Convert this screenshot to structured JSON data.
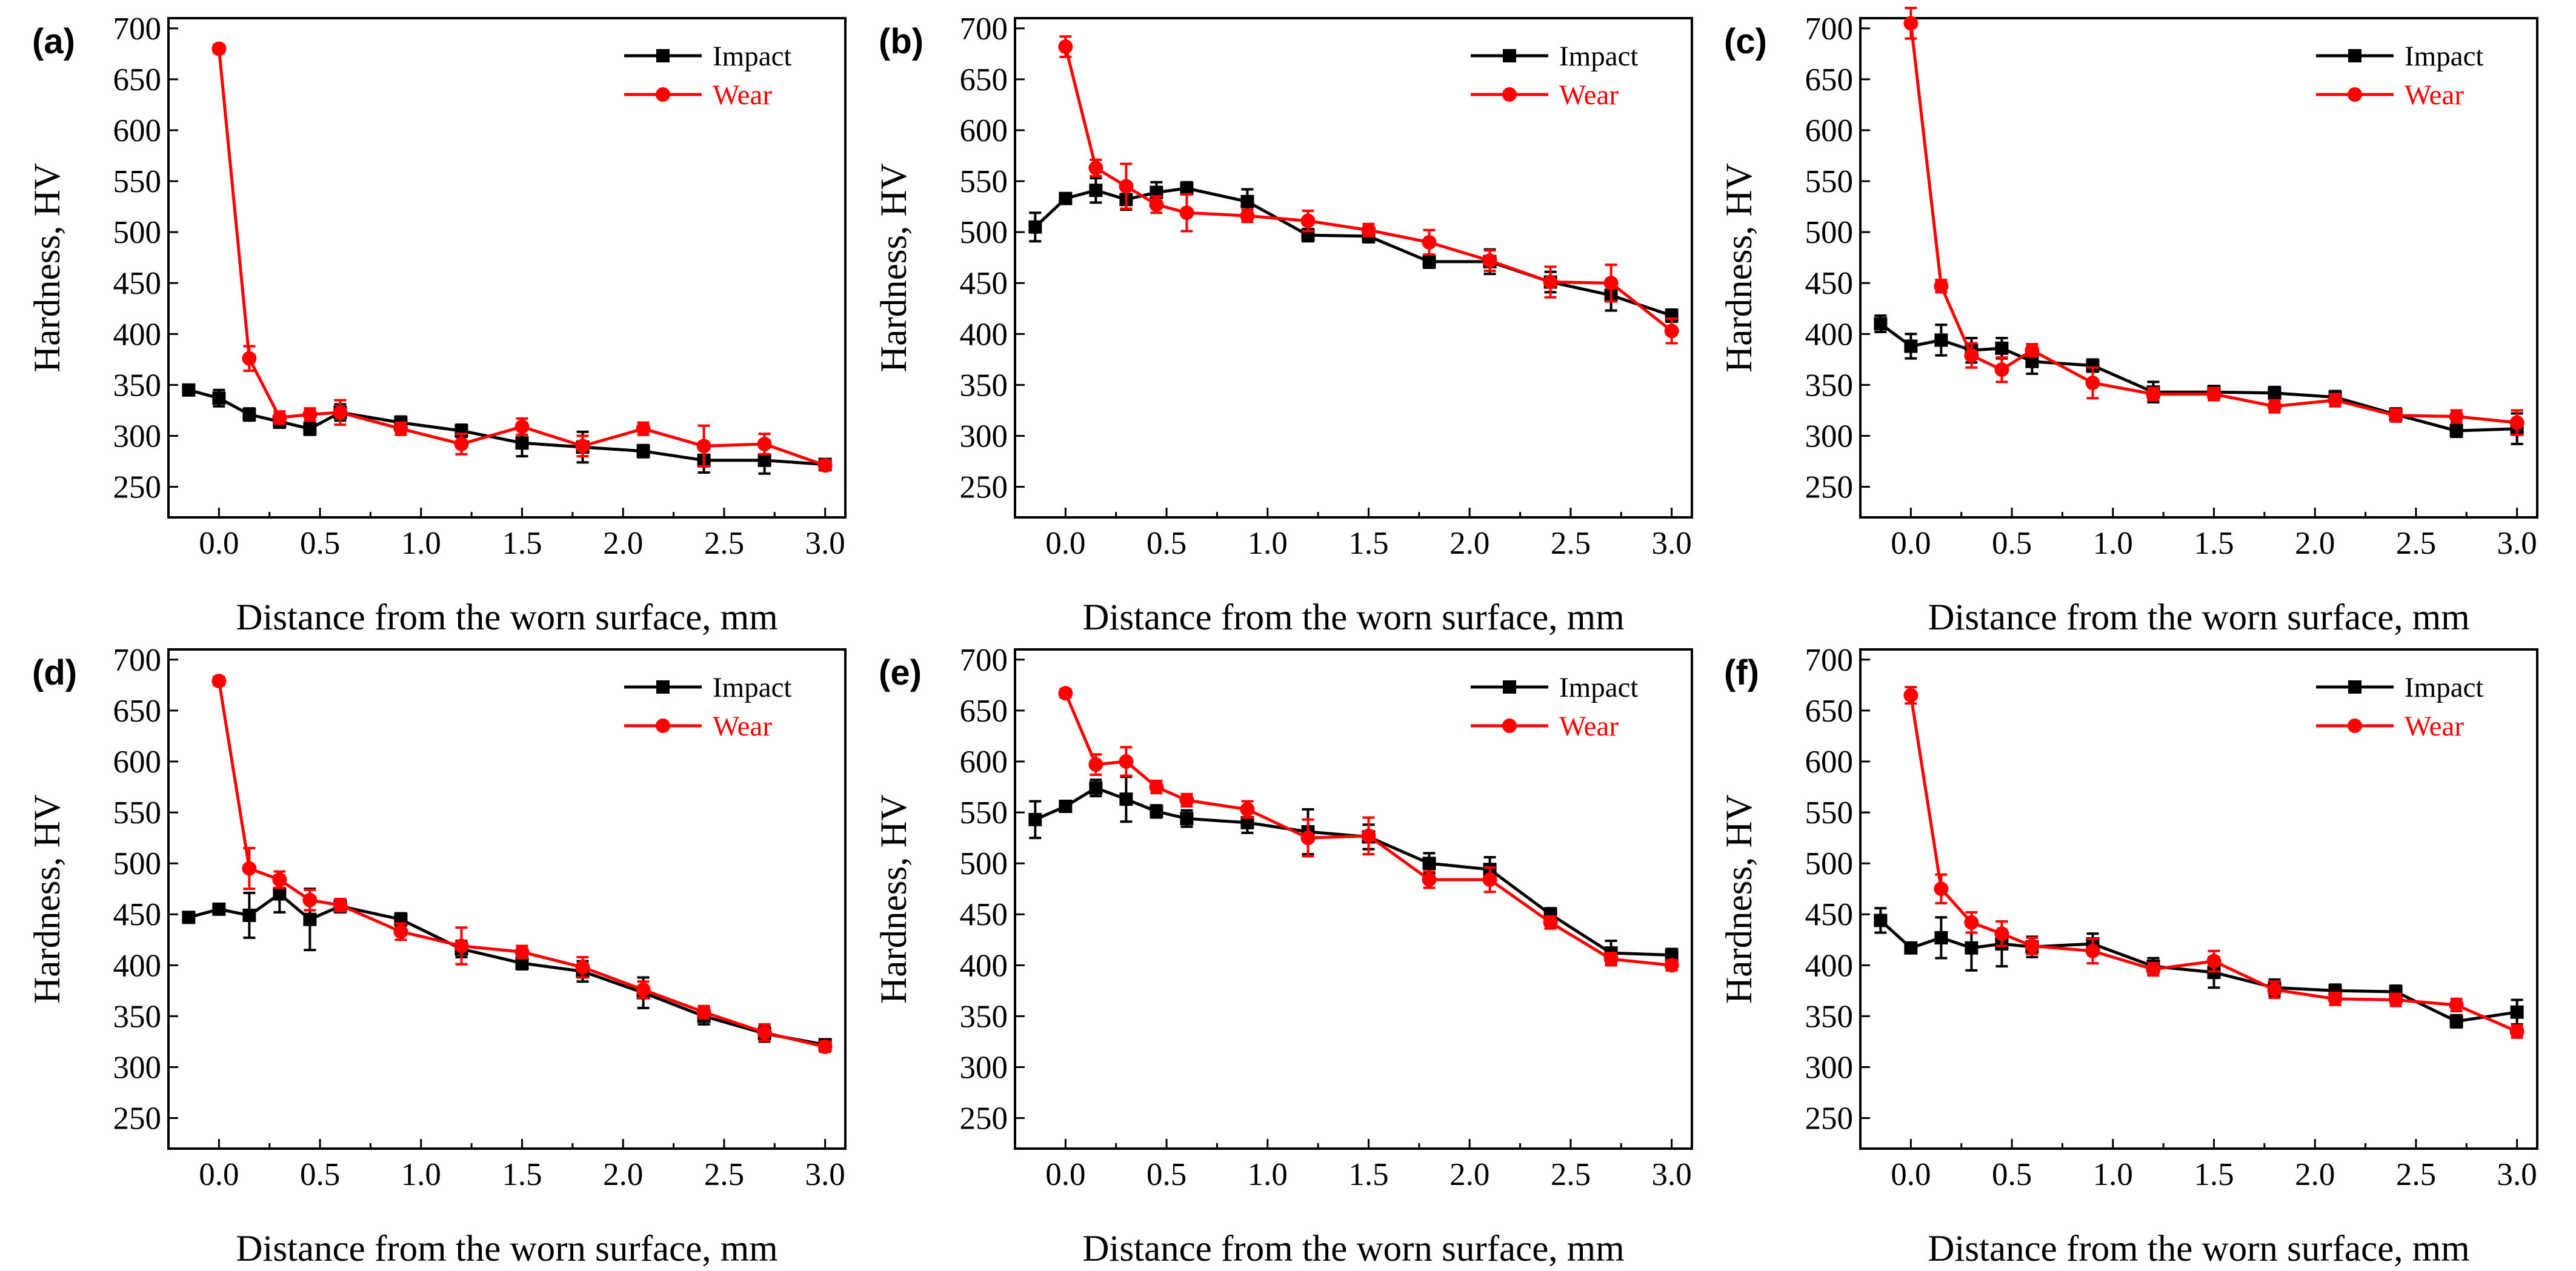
{
  "colors": {
    "impact": "#000000",
    "wear": "#ff0000",
    "axis": "#000000"
  },
  "chart_data": [
    {
      "type": "line",
      "panel_label": "(a)",
      "xlabel": "Distance from the worn surface, mm",
      "ylabel": "Hardness, HV",
      "xlim": [
        -0.25,
        3.1
      ],
      "ylim": [
        220,
        710
      ],
      "xticks": [
        "0.0",
        "0.5",
        "1.0",
        "1.5",
        "2.0",
        "2.5",
        "3.0"
      ],
      "yticks": [
        "250",
        "300",
        "350",
        "400",
        "450",
        "500",
        "550",
        "600",
        "650",
        "700"
      ],
      "legend": {
        "position": "top-right"
      },
      "series": [
        {
          "name": "Impact",
          "marker": "square",
          "x": [
            -0.15,
            0,
            0.15,
            0.3,
            0.45,
            0.6,
            0.9,
            1.2,
            1.5,
            1.8,
            2.1,
            2.4,
            2.7,
            3.0
          ],
          "y": [
            345,
            337,
            321,
            314,
            307,
            323,
            313,
            305,
            293,
            289,
            285,
            276,
            276,
            272
          ],
          "err": [
            5,
            8,
            6,
            6,
            6,
            8,
            6,
            6,
            13,
            15,
            6,
            12,
            13,
            5
          ]
        },
        {
          "name": "Wear",
          "marker": "circle",
          "x": [
            0,
            0.15,
            0.3,
            0.45,
            0.6,
            0.9,
            1.2,
            1.5,
            1.8,
            2.1,
            2.4,
            2.7,
            3.0
          ],
          "y": [
            680,
            376,
            318,
            321,
            323,
            307,
            292,
            309,
            290,
            307,
            290,
            292,
            271
          ],
          "err": [
            4,
            12,
            6,
            6,
            12,
            6,
            10,
            8,
            10,
            6,
            20,
            10,
            5
          ]
        }
      ]
    },
    {
      "type": "line",
      "panel_label": "(b)",
      "xlabel": "Distance from the worn surface, mm",
      "ylabel": "Hardness, HV",
      "xlim": [
        -0.25,
        3.1
      ],
      "ylim": [
        220,
        710
      ],
      "xticks": [
        "0.0",
        "0.5",
        "1.0",
        "1.5",
        "2.0",
        "2.5",
        "3.0"
      ],
      "yticks": [
        "250",
        "300",
        "350",
        "400",
        "450",
        "500",
        "550",
        "600",
        "650",
        "700"
      ],
      "legend": {
        "position": "top-right"
      },
      "series": [
        {
          "name": "Impact",
          "marker": "square",
          "x": [
            -0.15,
            0,
            0.15,
            0.3,
            0.45,
            0.6,
            0.9,
            1.2,
            1.5,
            1.8,
            2.1,
            2.4,
            2.7,
            3.0
          ],
          "y": [
            505,
            533,
            541,
            532,
            539,
            543,
            530,
            497,
            496,
            471,
            471,
            451,
            438,
            418
          ],
          "err": [
            14,
            5,
            12,
            10,
            10,
            6,
            12,
            6,
            6,
            6,
            12,
            10,
            15,
            6
          ]
        },
        {
          "name": "Wear",
          "marker": "circle",
          "x": [
            0,
            0.15,
            0.3,
            0.45,
            0.6,
            0.9,
            1.2,
            1.5,
            1.8,
            2.1,
            2.4,
            2.7,
            3.0
          ],
          "y": [
            682,
            563,
            545,
            527,
            519,
            516,
            511,
            502,
            490,
            472,
            451,
            450,
            403
          ],
          "err": [
            10,
            8,
            22,
            8,
            18,
            6,
            10,
            6,
            12,
            10,
            15,
            18,
            12
          ]
        }
      ]
    },
    {
      "type": "line",
      "panel_label": "(c)",
      "xlabel": "Distance from the worn surface, mm",
      "ylabel": "Hardness, HV",
      "xlim": [
        -0.25,
        3.1
      ],
      "ylim": [
        220,
        710
      ],
      "xticks": [
        "0.0",
        "0.5",
        "1.0",
        "1.5",
        "2.0",
        "2.5",
        "3.0"
      ],
      "yticks": [
        "250",
        "300",
        "350",
        "400",
        "450",
        "500",
        "550",
        "600",
        "650",
        "700"
      ],
      "legend": {
        "position": "top-right"
      },
      "series": [
        {
          "name": "Impact",
          "marker": "square",
          "x": [
            -0.15,
            0,
            0.15,
            0.3,
            0.45,
            0.6,
            0.9,
            1.2,
            1.5,
            1.8,
            2.1,
            2.4,
            2.7,
            3.0
          ],
          "y": [
            410,
            388,
            394,
            384,
            386,
            373,
            369,
            343,
            343,
            342,
            338,
            321,
            305,
            307
          ],
          "err": [
            8,
            12,
            15,
            12,
            10,
            12,
            6,
            10,
            6,
            6,
            6,
            6,
            6,
            15
          ]
        },
        {
          "name": "Wear",
          "marker": "circle",
          "x": [
            0,
            0.15,
            0.3,
            0.45,
            0.6,
            0.9,
            1.2,
            1.5,
            1.8,
            2.1,
            2.4,
            2.7,
            3.0
          ],
          "y": [
            705,
            447,
            379,
            365,
            384,
            352,
            341,
            341,
            329,
            335,
            320,
            319,
            313
          ],
          "err": [
            15,
            6,
            12,
            12,
            6,
            15,
            6,
            6,
            6,
            6,
            6,
            6,
            12
          ]
        }
      ]
    },
    {
      "type": "line",
      "panel_label": "(d)",
      "xlabel": "Distance from the worn surface, mm",
      "ylabel": "Hardness, HV",
      "xlim": [
        -0.25,
        3.1
      ],
      "ylim": [
        220,
        710
      ],
      "xticks": [
        "0.0",
        "0.5",
        "1.0",
        "1.5",
        "2.0",
        "2.5",
        "3.0"
      ],
      "yticks": [
        "250",
        "300",
        "350",
        "400",
        "450",
        "500",
        "550",
        "600",
        "650",
        "700"
      ],
      "legend": {
        "position": "top-right"
      },
      "series": [
        {
          "name": "Impact",
          "marker": "square",
          "x": [
            -0.15,
            0,
            0.15,
            0.3,
            0.45,
            0.6,
            0.9,
            1.2,
            1.5,
            1.8,
            2.1,
            2.4,
            2.7,
            3.0
          ],
          "y": [
            447,
            455,
            449,
            470,
            445,
            458,
            445,
            416,
            402,
            394,
            373,
            350,
            333,
            322
          ],
          "err": [
            5,
            5,
            22,
            18,
            30,
            6,
            6,
            8,
            6,
            10,
            15,
            8,
            8,
            5
          ]
        },
        {
          "name": "Wear",
          "marker": "circle",
          "x": [
            0,
            0.15,
            0.3,
            0.45,
            0.6,
            0.9,
            1.2,
            1.5,
            1.8,
            2.1,
            2.4,
            2.7,
            3.0
          ],
          "y": [
            679,
            495,
            484,
            464,
            459,
            433,
            419,
            413,
            398,
            376,
            354,
            334,
            320
          ],
          "err": [
            4,
            20,
            8,
            10,
            6,
            8,
            18,
            6,
            10,
            8,
            6,
            8,
            5
          ]
        }
      ]
    },
    {
      "type": "line",
      "panel_label": "(e)",
      "xlabel": "Distance from the worn surface, mm",
      "ylabel": "Hardness, HV",
      "xlim": [
        -0.25,
        3.1
      ],
      "ylim": [
        220,
        710
      ],
      "xticks": [
        "0.0",
        "0.5",
        "1.0",
        "1.5",
        "2.0",
        "2.5",
        "3.0"
      ],
      "yticks": [
        "250",
        "300",
        "350",
        "400",
        "450",
        "500",
        "550",
        "600",
        "650",
        "700"
      ],
      "legend": {
        "position": "top-right"
      },
      "series": [
        {
          "name": "Impact",
          "marker": "square",
          "x": [
            -0.15,
            0,
            0.15,
            0.3,
            0.45,
            0.6,
            0.9,
            1.2,
            1.5,
            1.8,
            2.1,
            2.4,
            2.7,
            3.0
          ],
          "y": [
            543,
            556,
            574,
            563,
            551,
            544,
            540,
            531,
            526,
            500,
            494,
            450,
            412,
            410
          ],
          "err": [
            18,
            5,
            8,
            22,
            6,
            8,
            10,
            22,
            12,
            10,
            12,
            6,
            12,
            6
          ]
        },
        {
          "name": "Wear",
          "marker": "circle",
          "x": [
            0,
            0.15,
            0.3,
            0.45,
            0.6,
            0.9,
            1.2,
            1.5,
            1.8,
            2.1,
            2.4,
            2.7,
            3.0
          ],
          "y": [
            667,
            597,
            600,
            575,
            562,
            553,
            525,
            527,
            484,
            484,
            442,
            406,
            400
          ],
          "err": [
            4,
            10,
            14,
            6,
            6,
            8,
            18,
            18,
            8,
            12,
            6,
            6,
            5
          ]
        }
      ]
    },
    {
      "type": "line",
      "panel_label": "(f)",
      "xlabel": "Distance from the worn surface, mm",
      "ylabel": "Hardness, HV",
      "xlim": [
        -0.25,
        3.1
      ],
      "ylim": [
        220,
        710
      ],
      "xticks": [
        "0.0",
        "0.5",
        "1.0",
        "1.5",
        "2.0",
        "2.5",
        "3.0"
      ],
      "yticks": [
        "250",
        "300",
        "350",
        "400",
        "450",
        "500",
        "550",
        "600",
        "650",
        "700"
      ],
      "legend": {
        "position": "top-right"
      },
      "series": [
        {
          "name": "Impact",
          "marker": "square",
          "x": [
            -0.15,
            0,
            0.15,
            0.3,
            0.45,
            0.6,
            0.9,
            1.2,
            1.5,
            1.8,
            2.1,
            2.4,
            2.7,
            3.0
          ],
          "y": [
            444,
            417,
            427,
            417,
            421,
            418,
            421,
            399,
            393,
            378,
            375,
            374,
            345,
            354
          ],
          "err": [
            12,
            5,
            20,
            22,
            22,
            10,
            10,
            8,
            15,
            8,
            6,
            6,
            6,
            12
          ]
        },
        {
          "name": "Wear",
          "marker": "circle",
          "x": [
            0,
            0.15,
            0.3,
            0.45,
            0.6,
            0.9,
            1.2,
            1.5,
            1.8,
            2.1,
            2.4,
            2.7,
            3.0
          ],
          "y": [
            665,
            475,
            442,
            431,
            419,
            414,
            396,
            404,
            376,
            367,
            366,
            361,
            335
          ],
          "err": [
            8,
            14,
            10,
            12,
            8,
            12,
            6,
            10,
            8,
            6,
            6,
            6,
            6
          ]
        }
      ]
    }
  ]
}
